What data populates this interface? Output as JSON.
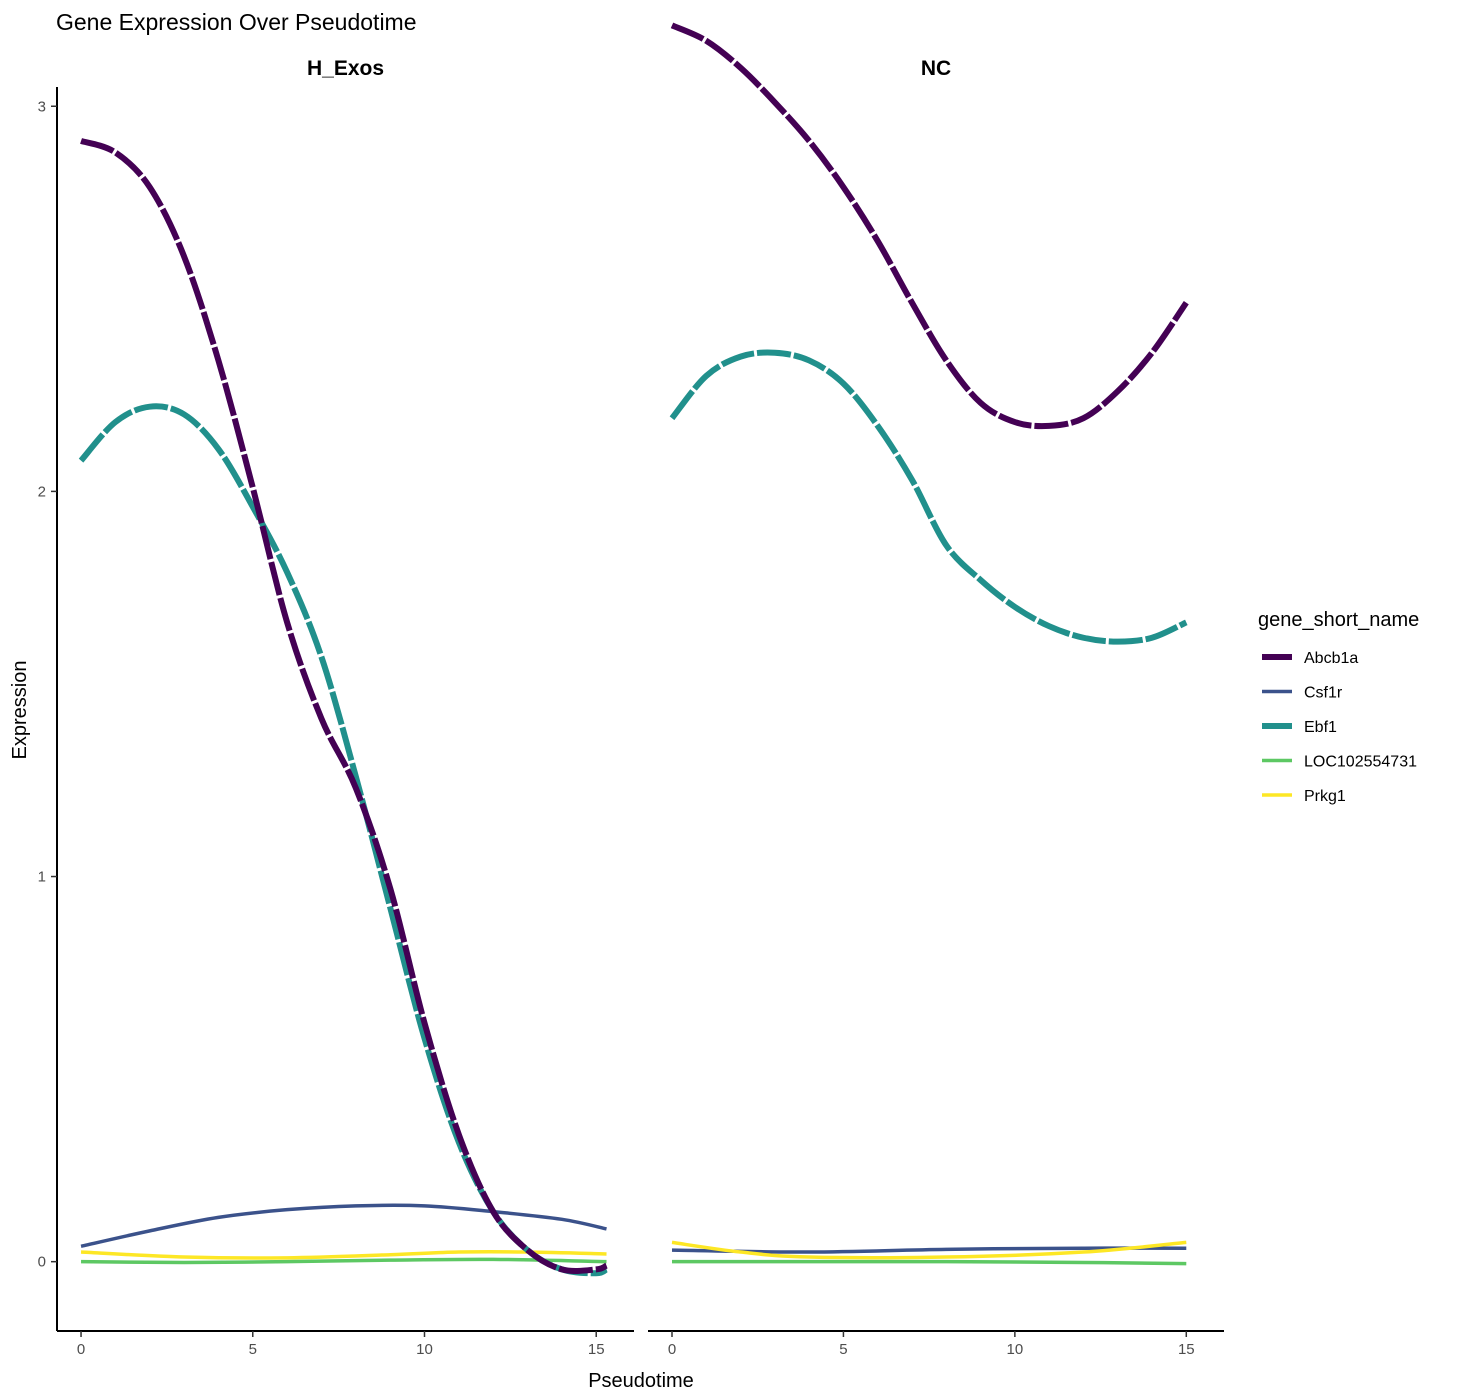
{
  "chart_data": {
    "type": "line",
    "title": "Gene Expression Over Pseudotime",
    "xlabel": "Pseudotime",
    "ylabel": "Expression",
    "legend_title": "gene_short_name",
    "legend_position": "right",
    "grid": false,
    "ylim": [
      -0.18,
      3.05
    ],
    "y_ticks": [
      0,
      1,
      2,
      3
    ],
    "x_ticks": [
      0,
      5,
      10,
      15
    ],
    "colors": {
      "Abcb1a": "#440154",
      "Csf1r": "#3B528B",
      "Ebf1": "#21908C",
      "LOC102554731": "#5DC863",
      "Prkg1": "#FDE725"
    },
    "legend": [
      {
        "name": "Abcb1a",
        "style": "dashed-thick"
      },
      {
        "name": "Csf1r",
        "style": "solid"
      },
      {
        "name": "Ebf1",
        "style": "dashed-thick"
      },
      {
        "name": "LOC102554731",
        "style": "solid"
      },
      {
        "name": "Prkg1",
        "style": "solid"
      }
    ],
    "panels": [
      {
        "strip": "H_Exos",
        "xlim": [
          -0.7,
          16.1
        ],
        "series": [
          {
            "name": "Abcb1a",
            "x": [
              0,
              1,
              2,
              3,
              4,
              5,
              6,
              7,
              8,
              9,
              10,
              11,
              12,
              13,
              14,
              15,
              15.3
            ],
            "y": [
              2.91,
              2.88,
              2.79,
              2.61,
              2.34,
              2.01,
              1.66,
              1.41,
              1.23,
              0.97,
              0.62,
              0.33,
              0.13,
              0.03,
              -0.02,
              -0.02,
              -0.01
            ]
          },
          {
            "name": "Ebf1",
            "x": [
              0,
              1,
              2,
              3,
              4,
              5,
              6,
              7,
              8,
              9,
              10,
              11,
              12,
              13,
              14,
              15,
              15.3
            ],
            "y": [
              2.08,
              2.18,
              2.22,
              2.2,
              2.11,
              1.96,
              1.79,
              1.57,
              1.26,
              0.92,
              0.58,
              0.31,
              0.13,
              0.03,
              -0.02,
              -0.03,
              -0.02
            ]
          },
          {
            "name": "Csf1r",
            "x": [
              0,
              2,
              4,
              6,
              8,
              10,
              12,
              14,
              15.3
            ],
            "y": [
              0.04,
              0.08,
              0.115,
              0.135,
              0.145,
              0.145,
              0.13,
              0.11,
              0.085
            ]
          },
          {
            "name": "LOC102554731",
            "x": [
              0,
              3,
              6,
              9,
              12,
              15.3
            ],
            "y": [
              0.0,
              -0.002,
              0.0,
              0.004,
              0.006,
              0.0
            ]
          },
          {
            "name": "Prkg1",
            "x": [
              0,
              3,
              6,
              9,
              11,
              13,
              15.3
            ],
            "y": [
              0.025,
              0.012,
              0.01,
              0.018,
              0.025,
              0.025,
              0.02
            ]
          }
        ]
      },
      {
        "strip": "NC",
        "xlim": [
          -0.7,
          16.1
        ],
        "series": [
          {
            "name": "Abcb1a",
            "x": [
              0,
              1,
              2,
              3,
              4,
              5,
              6,
              7,
              8,
              9,
              10,
              11,
              12,
              13,
              14,
              15
            ],
            "y": [
              3.21,
              3.17,
              3.1,
              3.01,
              2.91,
              2.79,
              2.65,
              2.49,
              2.34,
              2.23,
              2.18,
              2.17,
              2.19,
              2.26,
              2.36,
              2.49
            ]
          },
          {
            "name": "Ebf1",
            "x": [
              0,
              1,
              2,
              3,
              4,
              5,
              6,
              7,
              8,
              9,
              10,
              11,
              12,
              13,
              14,
              15
            ],
            "y": [
              2.19,
              2.3,
              2.35,
              2.36,
              2.34,
              2.28,
              2.17,
              2.03,
              1.86,
              1.77,
              1.7,
              1.65,
              1.62,
              1.61,
              1.62,
              1.66
            ]
          },
          {
            "name": "Csf1r",
            "x": [
              0,
              4,
              8,
              12,
              15
            ],
            "y": [
              0.03,
              0.025,
              0.032,
              0.035,
              0.035
            ]
          },
          {
            "name": "LOC102554731",
            "x": [
              0,
              4,
              8,
              12,
              15
            ],
            "y": [
              0.0,
              0.0,
              0.0,
              -0.002,
              -0.005
            ]
          },
          {
            "name": "Prkg1",
            "x": [
              0,
              2,
              4,
              8,
              12,
              15
            ],
            "y": [
              0.05,
              0.025,
              0.012,
              0.012,
              0.025,
              0.05
            ]
          }
        ]
      }
    ]
  }
}
